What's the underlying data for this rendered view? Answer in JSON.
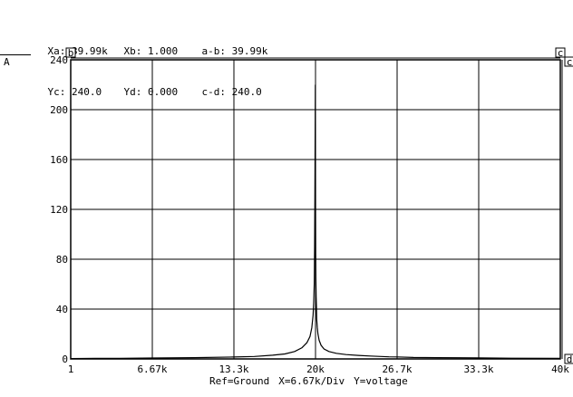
{
  "readout": {
    "row1": [
      {
        "name": "readout-xa",
        "text": "Xa: 39.99k"
      },
      {
        "name": "readout-xb",
        "text": "Xb: 1.000"
      },
      {
        "name": "readout-a-b",
        "text": "a-b: 39.99k"
      }
    ],
    "row2": [
      {
        "name": "readout-yc",
        "text": "Yc: 240.0"
      },
      {
        "name": "readout-yd",
        "text": "Yd: 0.000"
      },
      {
        "name": "readout-c-d",
        "text": "c-d: 240.0"
      }
    ]
  },
  "trace_label": "A",
  "cursor_markers": [
    "b",
    "c",
    "c",
    "d"
  ],
  "footer": {
    "ref": "Ref=Ground",
    "xdiv": "X=6.67k/Div",
    "ytype": "Y=voltage"
  },
  "chart_data": {
    "type": "line",
    "xlim": [
      1,
      40000
    ],
    "ylim": [
      0,
      240
    ],
    "x_tick_labels": [
      "1",
      "6.67k",
      "13.3k",
      "20k",
      "26.7k",
      "33.3k",
      "40k"
    ],
    "y_tick_labels": [
      "0",
      "40",
      "80",
      "120",
      "160",
      "200",
      "240"
    ],
    "grid": true,
    "series": [
      {
        "color": "#000000",
        "x": [
          1,
          2000,
          4000,
          6670,
          10000,
          13300,
          15000,
          16500,
          17500,
          18300,
          18900,
          19300,
          19550,
          19700,
          19800,
          19850,
          19900,
          19930,
          19950,
          19970,
          19985,
          19995,
          20000,
          20005,
          20015,
          20030,
          20050,
          20080,
          20100,
          20150,
          20200,
          20300,
          20450,
          20700,
          21100,
          21700,
          22500,
          23500,
          24500,
          26000,
          26700,
          28000,
          30000,
          33300,
          36000,
          40000
        ],
        "y": [
          0.3,
          0.4,
          0.5,
          0.7,
          1.0,
          1.5,
          2.0,
          3.0,
          4.0,
          6.0,
          9.0,
          13.0,
          18.0,
          25.0,
          35.0,
          45.0,
          60.0,
          90.0,
          130.0,
          180.0,
          220.0,
          200.0,
          145.0,
          110.0,
          85.0,
          65.0,
          50.0,
          40.0,
          32.0,
          25.0,
          20.0,
          15.0,
          11.0,
          8.0,
          6.0,
          4.5,
          3.5,
          2.8,
          2.3,
          1.7,
          1.6,
          1.2,
          1.0,
          0.8,
          0.6,
          0.5
        ]
      }
    ]
  }
}
